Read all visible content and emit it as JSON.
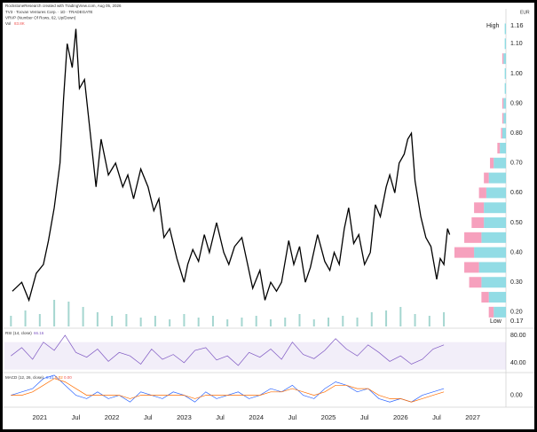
{
  "header": {
    "attribution": "RockstoneResearch created with TradingView.com, Aug 05, 2026",
    "symbol": "TV3 · Tocvan Ventures Corp. · 1D · TRADEGATE",
    "indicator": "VRVP (Number Of Rows, 62, Up/Down)",
    "volume_label": "Vol",
    "volume_value": "83.8K",
    "currency": "EUR"
  },
  "chart_data": [
    {
      "type": "line",
      "color": "#000000",
      "x": [
        2020.62,
        2020.75,
        2020.85,
        2020.95,
        2021.05,
        2021.12,
        2021.2,
        2021.28,
        2021.33,
        2021.38,
        2021.45,
        2021.5,
        2021.55,
        2021.62,
        2021.7,
        2021.78,
        2021.85,
        2021.95,
        2022.05,
        2022.15,
        2022.22,
        2022.3,
        2022.4,
        2022.5,
        2022.58,
        2022.65,
        2022.72,
        2022.8,
        2022.9,
        2023.0,
        2023.05,
        2023.12,
        2023.2,
        2023.28,
        2023.35,
        2023.45,
        2023.55,
        2023.62,
        2023.7,
        2023.8,
        2023.88,
        2023.95,
        2024.05,
        2024.12,
        2024.2,
        2024.28,
        2024.35,
        2024.45,
        2024.52,
        2024.6,
        2024.68,
        2024.75,
        2024.85,
        2024.95,
        2025.02,
        2025.08,
        2025.15,
        2025.22,
        2025.28,
        2025.35,
        2025.42,
        2025.5,
        2025.58,
        2025.65,
        2025.72,
        2025.8,
        2025.85,
        2025.92,
        2025.98,
        2026.05,
        2026.1,
        2026.15,
        2026.2,
        2026.28,
        2026.35,
        2026.42,
        2026.5,
        2026.55,
        2026.6,
        2026.65,
        2026.68
      ],
      "values": [
        0.27,
        0.3,
        0.24,
        0.33,
        0.36,
        0.44,
        0.55,
        0.7,
        0.92,
        1.1,
        1.02,
        1.15,
        0.95,
        0.98,
        0.8,
        0.62,
        0.78,
        0.66,
        0.7,
        0.62,
        0.66,
        0.58,
        0.68,
        0.62,
        0.54,
        0.58,
        0.45,
        0.48,
        0.38,
        0.3,
        0.36,
        0.41,
        0.37,
        0.46,
        0.4,
        0.5,
        0.4,
        0.36,
        0.42,
        0.45,
        0.36,
        0.28,
        0.34,
        0.24,
        0.3,
        0.27,
        0.3,
        0.44,
        0.36,
        0.42,
        0.3,
        0.35,
        0.46,
        0.37,
        0.34,
        0.4,
        0.36,
        0.48,
        0.55,
        0.43,
        0.46,
        0.36,
        0.4,
        0.56,
        0.52,
        0.62,
        0.66,
        0.6,
        0.7,
        0.73,
        0.78,
        0.8,
        0.64,
        0.52,
        0.45,
        0.42,
        0.31,
        0.38,
        0.36,
        0.48,
        0.46
      ],
      "xlim": [
        2020.51,
        2027.46
      ],
      "xticks": [
        2021,
        {
          "value": 2021.5,
          "label": "Jul"
        },
        2022,
        {
          "value": 2022.5,
          "label": "Jul"
        },
        2023,
        {
          "value": 2023.5,
          "label": "Jul"
        },
        2024,
        {
          "value": 2024.5,
          "label": "Jul"
        },
        2025,
        {
          "value": 2025.5,
          "label": "Jul"
        },
        2026,
        {
          "value": 2026.5,
          "label": "Jul"
        },
        2027
      ],
      "ylim": [
        0.152,
        1.211
      ],
      "yticks": [
        {
          "value": 1.1,
          "label": "1.10"
        },
        {
          "value": 1.0,
          "label": "1.00"
        },
        {
          "value": 0.9,
          "label": "0.90"
        },
        {
          "value": 0.8,
          "label": "0.80"
        },
        {
          "value": 0.7,
          "label": "0.70"
        },
        {
          "value": 0.6,
          "label": "0.60"
        },
        {
          "value": 0.5,
          "label": "0.50"
        },
        {
          "value": 0.4,
          "label": "0.40"
        },
        {
          "value": 0.3,
          "label": "0.30"
        },
        {
          "value": 0.2,
          "label": "0.20"
        }
      ],
      "high": {
        "label": "High",
        "value": 1.16
      },
      "low": {
        "label": "Low",
        "value": 0.17
      },
      "volume": {
        "color": "#a5d6d0",
        "x": [
          2020.6,
          2020.8,
          2021.0,
          2021.2,
          2021.4,
          2021.6,
          2021.8,
          2022.0,
          2022.2,
          2022.4,
          2022.6,
          2022.8,
          2023.0,
          2023.2,
          2023.4,
          2023.6,
          2023.8,
          2024.0,
          2024.2,
          2024.4,
          2024.6,
          2024.8,
          2025.0,
          2025.2,
          2025.4,
          2025.6,
          2025.8,
          2026.0,
          2026.2,
          2026.4,
          2026.6
        ],
        "values": [
          60000,
          90000,
          70000,
          150000,
          140000,
          110000,
          80000,
          60000,
          70000,
          50000,
          60000,
          40000,
          70000,
          50000,
          60000,
          40000,
          50000,
          60000,
          40000,
          50000,
          70000,
          40000,
          50000,
          60000,
          50000,
          80000,
          90000,
          110000,
          70000,
          60000,
          80000
        ]
      },
      "volume_profile": {
        "up_color": "#7fd6e0",
        "down_color": "#f48fb1",
        "prices": [
          0.2,
          0.25,
          0.3,
          0.35,
          0.4,
          0.45,
          0.5,
          0.55,
          0.6,
          0.65,
          0.7,
          0.75,
          0.8,
          0.85,
          0.9,
          0.95,
          1.0,
          1.05,
          1.1,
          1.15
        ],
        "up": [
          10,
          14,
          20,
          22,
          26,
          20,
          18,
          18,
          16,
          14,
          10,
          5,
          3,
          2,
          2,
          1,
          1,
          2,
          1,
          1
        ],
        "down": [
          4,
          6,
          10,
          12,
          16,
          14,
          10,
          8,
          6,
          4,
          3,
          2,
          1,
          1,
          1,
          0,
          0,
          1,
          0,
          0
        ]
      }
    },
    {
      "type": "line",
      "title": "RSI (14, close)",
      "value_label": "66.16",
      "color": "#7e57c2",
      "band": [
        30,
        70
      ],
      "x": [
        2020.6,
        2020.75,
        2020.9,
        2021.05,
        2021.2,
        2021.35,
        2021.5,
        2021.65,
        2021.8,
        2021.95,
        2022.1,
        2022.25,
        2022.4,
        2022.55,
        2022.7,
        2022.85,
        2023.0,
        2023.15,
        2023.3,
        2023.45,
        2023.6,
        2023.75,
        2023.9,
        2024.05,
        2024.2,
        2024.35,
        2024.5,
        2024.65,
        2024.8,
        2024.95,
        2025.1,
        2025.25,
        2025.4,
        2025.55,
        2025.7,
        2025.85,
        2026.0,
        2026.15,
        2026.3,
        2026.45,
        2026.6
      ],
      "values": [
        50,
        62,
        45,
        70,
        58,
        80,
        55,
        48,
        60,
        42,
        55,
        50,
        38,
        60,
        45,
        52,
        40,
        58,
        62,
        44,
        50,
        36,
        55,
        48,
        60,
        45,
        70,
        52,
        46,
        58,
        75,
        60,
        50,
        66,
        55,
        42,
        50,
        38,
        45,
        60,
        66
      ],
      "ylim": [
        27,
        89
      ],
      "yticks": [
        {
          "value": 80,
          "label": "80.00"
        },
        {
          "value": 40,
          "label": "40.00"
        }
      ]
    },
    {
      "type": "line",
      "title": "MACD (12, 26, close)",
      "value_labels": [
        "0.01",
        "0.02",
        "0.00"
      ],
      "x": [
        2020.6,
        2020.75,
        2020.9,
        2021.05,
        2021.2,
        2021.35,
        2021.5,
        2021.65,
        2021.8,
        2021.95,
        2022.1,
        2022.25,
        2022.4,
        2022.55,
        2022.7,
        2022.85,
        2023.0,
        2023.15,
        2023.3,
        2023.45,
        2023.6,
        2023.75,
        2023.9,
        2024.05,
        2024.2,
        2024.35,
        2024.5,
        2024.65,
        2024.8,
        2024.95,
        2025.1,
        2025.25,
        2025.4,
        2025.55,
        2025.7,
        2025.85,
        2026.0,
        2026.15,
        2026.3,
        2026.45,
        2026.6
      ],
      "series": [
        {
          "color": "#2962ff",
          "values": [
            0,
            0.01,
            0.02,
            0.05,
            0.06,
            0.03,
            0.0,
            -0.01,
            0.01,
            -0.01,
            0.0,
            -0.02,
            0.01,
            0.0,
            -0.01,
            0.01,
            0.0,
            -0.02,
            0.01,
            -0.01,
            0.0,
            0.01,
            -0.01,
            0.0,
            0.02,
            0.01,
            0.03,
            0.0,
            -0.01,
            0.02,
            0.04,
            0.03,
            0.01,
            0.02,
            -0.01,
            -0.02,
            -0.01,
            -0.02,
            0.0,
            0.01,
            0.02
          ]
        },
        {
          "color": "#ff6d00",
          "values": [
            0,
            0,
            0.01,
            0.03,
            0.05,
            0.04,
            0.02,
            0.0,
            0.0,
            0.0,
            0.0,
            -0.01,
            0.0,
            0.0,
            0.0,
            0.0,
            0.0,
            -0.01,
            0.0,
            0.0,
            0.0,
            0.0,
            0.0,
            0.0,
            0.01,
            0.01,
            0.02,
            0.01,
            0.0,
            0.01,
            0.03,
            0.03,
            0.02,
            0.02,
            0.0,
            -0.01,
            -0.01,
            -0.02,
            -0.01,
            0.0,
            0.01
          ]
        }
      ],
      "ylim": [
        -0.03,
        0.065
      ],
      "yticks": [
        {
          "value": 0,
          "label": "0.00"
        }
      ]
    }
  ]
}
